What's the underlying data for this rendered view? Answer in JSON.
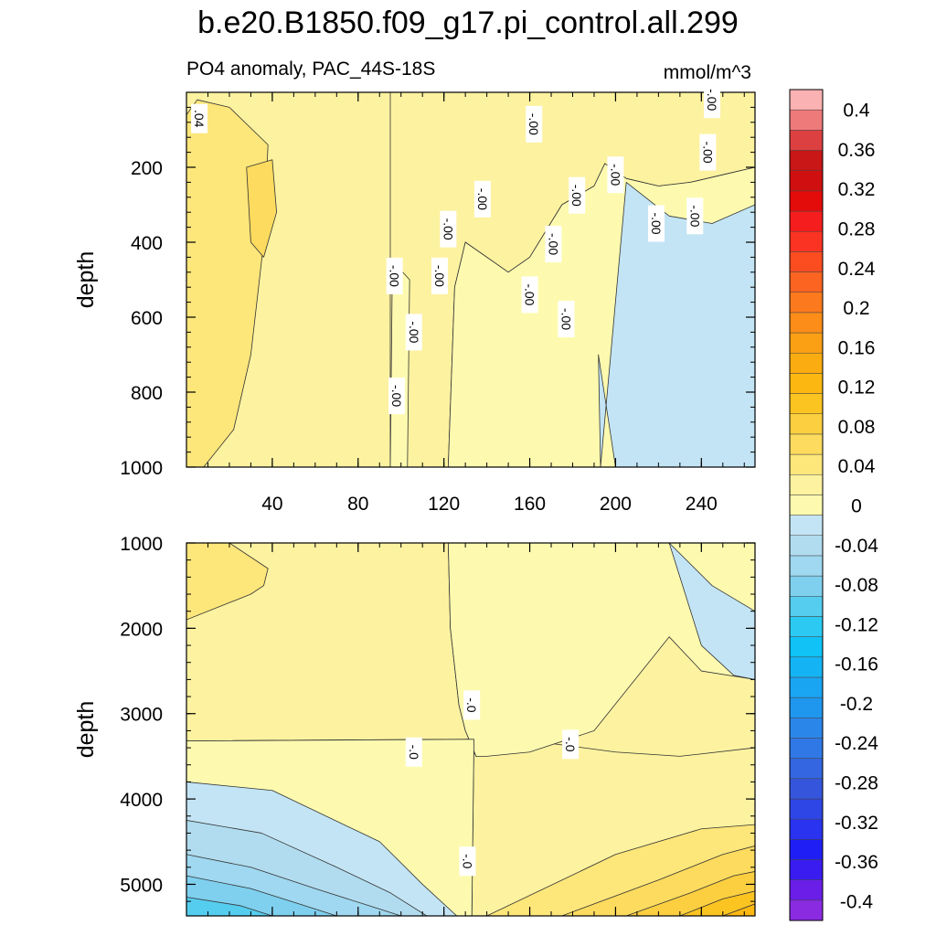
{
  "chart_data": {
    "type": "heatmap",
    "title": "b.e20.B1850.f09_g17.pi_control.all.299",
    "subtitle": "PO4 anomaly, PAC_44S-18S",
    "units": "mmol/m^3",
    "xlabel": "",
    "ylabel": "depth",
    "xlim": [
      0,
      265
    ],
    "x_ticks": [
      "40",
      "80",
      "120",
      "160",
      "200",
      "240"
    ],
    "x_tick_values": [
      40,
      80,
      120,
      160,
      200,
      240
    ],
    "panels": [
      {
        "name": "upper",
        "ylabel": "depth",
        "ylim": [
          1000,
          0
        ],
        "y_ticks": [
          "200",
          "400",
          "600",
          "800",
          "1000"
        ],
        "y_tick_values": [
          200,
          400,
          600,
          800,
          1000
        ],
        "regions": [
          {
            "x": [
              0,
              35,
              95,
              95,
              122,
              125,
              130,
              150,
              160,
              175,
              190,
              195,
              205,
              220,
              235,
              250,
              265,
              265,
              0
            ],
            "y": [
              0,
              0,
              0,
              1000,
              1000,
              520,
              400,
              480,
              440,
              300,
              250,
              190,
              230,
              250,
              240,
              220,
              200,
              0,
              0
            ],
            "value": 0.01
          },
          {
            "x": [
              0,
              5,
              20,
              38,
              36,
              30,
              22,
              8,
              0
            ],
            "y": [
              60,
              20,
              40,
              140,
              400,
              700,
              900,
              1000,
              1000
            ],
            "value": 0.03
          },
          {
            "x": [
              28,
              40,
              42,
              36,
              30
            ],
            "y": [
              200,
              180,
              320,
              440,
              400
            ],
            "value": 0.05
          },
          {
            "x": [
              122,
              125,
              130,
              150,
              160,
              175,
              190,
              195,
              205,
              220,
              235,
              250,
              265,
              265,
              122
            ],
            "y": [
              1000,
              520,
              400,
              480,
              440,
              300,
              250,
              190,
              230,
              250,
              240,
              220,
              200,
              1000,
              1000
            ],
            "value": -0.01
          },
          {
            "x": [
              193,
              205,
              225,
              245,
              265,
              265,
              200,
              192
            ],
            "y": [
              1000,
              240,
              330,
              350,
              300,
              1000,
              1000,
              700
            ],
            "value": -0.03
          },
          {
            "x": [
              95,
              103,
              104,
              96
            ],
            "y": [
              1000,
              1000,
              500,
              450
            ],
            "value": -0.01
          }
        ],
        "contour_labels": [
          {
            "text": ".04",
            "x": 6,
            "y": 70
          },
          {
            "text": "-.00",
            "x": 97,
            "y": 490
          },
          {
            "text": "-.00",
            "x": 106,
            "y": 640
          },
          {
            "text": "-.00",
            "x": 98,
            "y": 810
          },
          {
            "text": "-.00",
            "x": 118,
            "y": 490
          },
          {
            "text": "-.00",
            "x": 122,
            "y": 365
          },
          {
            "text": "-.00",
            "x": 138,
            "y": 285
          },
          {
            "text": "-.00",
            "x": 160,
            "y": 540
          },
          {
            "text": "-.00",
            "x": 162,
            "y": 85
          },
          {
            "text": "-.00",
            "x": 171,
            "y": 405
          },
          {
            "text": "-.00",
            "x": 177,
            "y": 605
          },
          {
            "text": "-.00",
            "x": 182,
            "y": 275
          },
          {
            "text": "-.00",
            "x": 200,
            "y": 220
          },
          {
            "text": "-.00",
            "x": 219,
            "y": 350
          },
          {
            "text": "-.00",
            "x": 237,
            "y": 330
          },
          {
            "text": "-.00",
            "x": 245,
            "y": 20
          },
          {
            "text": "-.00",
            "x": 243,
            "y": 160
          }
        ]
      },
      {
        "name": "lower",
        "ylabel": "depth",
        "ylim": [
          5370,
          1000
        ],
        "y_ticks": [
          "1000",
          "2000",
          "3000",
          "4000",
          "5000"
        ],
        "y_tick_values": [
          1000,
          2000,
          3000,
          4000,
          5000
        ],
        "regions": [
          {
            "x": [
              0,
              122,
              123,
              127,
              130,
              135,
              150,
              170,
              200,
              230,
              265,
              265,
              133,
              134,
              0
            ],
            "y": [
              1000,
              1000,
              2000,
              2900,
              3200,
              3500,
              3450,
              3350,
              3450,
              3500,
              3400,
              5370,
              5370,
              3300,
              3320
            ],
            "value": 0.01
          },
          {
            "x": [
              0,
              20,
              38,
              36,
              30,
              0
            ],
            "y": [
              1000,
              1000,
              1300,
              1500,
              1600,
              1900
            ],
            "value": 0.03
          },
          {
            "x": [
              122,
              265,
              265,
              240,
              225,
              190,
              160,
              140,
              135,
              130,
              127,
              123
            ],
            "y": [
              1000,
              1000,
              2600,
              2500,
              2100,
              3200,
              3450,
              3500,
              3500,
              3200,
              2900,
              2000
            ],
            "value": -0.01
          },
          {
            "x": [
              225,
              245,
              265,
              265,
              255,
              240
            ],
            "y": [
              1000,
              1500,
              1800,
              2600,
              2550,
              2200
            ],
            "value": -0.03
          },
          {
            "x": [
              0,
              134,
              133,
              0
            ],
            "y": [
              3320,
              3300,
              5370,
              5370
            ],
            "value": -0.01
          },
          {
            "x": [
              0,
              40,
              90,
              110,
              126,
              0
            ],
            "y": [
              3800,
              3900,
              4500,
              5000,
              5370,
              5370
            ],
            "value": -0.03
          },
          {
            "x": [
              0,
              35,
              70,
              95,
              112,
              0
            ],
            "y": [
              4250,
              4400,
              4800,
              5100,
              5370,
              5370
            ],
            "value": -0.05
          },
          {
            "x": [
              0,
              30,
              60,
              85,
              100,
              0
            ],
            "y": [
              4650,
              4800,
              5050,
              5250,
              5370,
              5370
            ],
            "value": -0.07
          },
          {
            "x": [
              0,
              30,
              55,
              70,
              0
            ],
            "y": [
              4900,
              5050,
              5250,
              5370,
              5370
            ],
            "value": -0.09
          },
          {
            "x": [
              0,
              25,
              40,
              0
            ],
            "y": [
              5150,
              5250,
              5370,
              5370
            ],
            "value": -0.11
          },
          {
            "x": [
              140,
              200,
              240,
              265,
              265
            ],
            "y": [
              5370,
              4650,
              4350,
              4300,
              5370
            ],
            "value": 0.03
          },
          {
            "x": [
              175,
              220,
              250,
              265,
              265
            ],
            "y": [
              5370,
              4950,
              4650,
              4550,
              5370
            ],
            "value": 0.05
          },
          {
            "x": [
              205,
              235,
              255,
              265,
              265
            ],
            "y": [
              5370,
              5100,
              4900,
              4850,
              5370
            ],
            "value": 0.07
          },
          {
            "x": [
              230,
              250,
              265,
              265
            ],
            "y": [
              5370,
              5170,
              5080,
              5370
            ],
            "value": 0.09
          },
          {
            "x": [
              250,
              265,
              265
            ],
            "y": [
              5370,
              5230,
              5370
            ],
            "value": 0.11
          }
        ],
        "contour_labels": [
          {
            "text": "-.0",
            "x": 133,
            "y": 2900
          },
          {
            "text": "-.0",
            "x": 106,
            "y": 3450
          },
          {
            "text": "-.0",
            "x": 179,
            "y": 3360
          },
          {
            "text": "-.0",
            "x": 131,
            "y": 4730
          }
        ]
      }
    ],
    "colorbar": {
      "levels": [
        -0.4,
        -0.38,
        -0.36,
        -0.34,
        -0.32,
        -0.3,
        -0.28,
        -0.26,
        -0.24,
        -0.22,
        -0.2,
        -0.18,
        -0.16,
        -0.14,
        -0.12,
        -0.1,
        -0.08,
        -0.06,
        -0.04,
        -0.02,
        0,
        0.02,
        0.04,
        0.06,
        0.08,
        0.1,
        0.12,
        0.14,
        0.16,
        0.18,
        0.2,
        0.22,
        0.24,
        0.26,
        0.28,
        0.3,
        0.32,
        0.34,
        0.36,
        0.38,
        0.4
      ],
      "labels": [
        "0.4",
        "0.36",
        "0.32",
        "0.28",
        "0.24",
        "0.2",
        "0.16",
        "0.12",
        "0.08",
        "0.04",
        "0",
        "-0.04",
        "-0.08",
        "-0.12",
        "-0.16",
        "-0.2",
        "-0.24",
        "-0.28",
        "-0.32",
        "-0.36",
        "-0.4"
      ],
      "label_values": [
        0.4,
        0.36,
        0.32,
        0.28,
        0.24,
        0.2,
        0.16,
        0.12,
        0.08,
        0.04,
        0,
        -0.04,
        -0.08,
        -0.12,
        -0.16,
        -0.2,
        -0.24,
        -0.28,
        -0.32,
        -0.36,
        -0.4
      ],
      "colors": [
        "#8a2be2",
        "#6a1ee8",
        "#3a1cf0",
        "#1f1ff5",
        "#2a33f0",
        "#2e46e6",
        "#3556dc",
        "#3366e0",
        "#2f78e6",
        "#2b86ea",
        "#1f97ef",
        "#1aa5f2",
        "#14b4f4",
        "#10c2f6",
        "#2ccaf2",
        "#55cdef",
        "#7fd0ee",
        "#9fd8f0",
        "#b1dcef",
        "#c3e4f4",
        "#fdfab0",
        "#fcf2a0",
        "#fde67a",
        "#fcdb5e",
        "#fccf40",
        "#fcc421",
        "#fcb811",
        "#fbac10",
        "#fb9f14",
        "#fb8d18",
        "#fc7a1d",
        "#fc6421",
        "#fc4d21",
        "#fb3322",
        "#f51d1d",
        "#e40b0b",
        "#d01010",
        "#c91616",
        "#dd4040",
        "#ef7a7a",
        "#fbb2b2"
      ]
    }
  }
}
